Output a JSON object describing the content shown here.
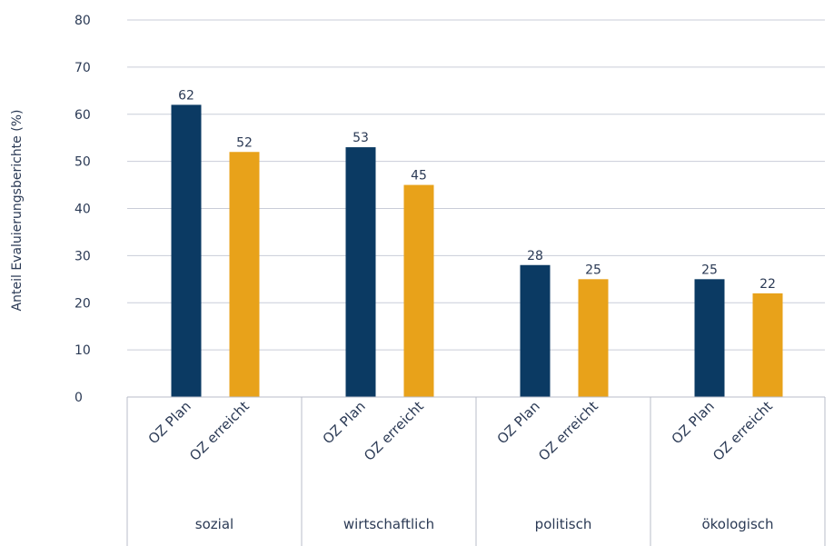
{
  "chart_data": {
    "type": "bar",
    "ylabel": "Anteil Evaluierungsberichte (%)",
    "ylim": [
      0,
      80
    ],
    "yticks": [
      0,
      10,
      20,
      30,
      40,
      50,
      60,
      70,
      80
    ],
    "grid": true,
    "groups": [
      "sozial",
      "wirtschaftlich",
      "politisch",
      "ökologisch"
    ],
    "series": [
      {
        "name": "OZ Plan",
        "color": "#0b3a63",
        "values": [
          62,
          53,
          28,
          25
        ]
      },
      {
        "name": "OZ erreicht",
        "color": "#e8a21a",
        "values": [
          52,
          45,
          25,
          22
        ]
      }
    ]
  }
}
